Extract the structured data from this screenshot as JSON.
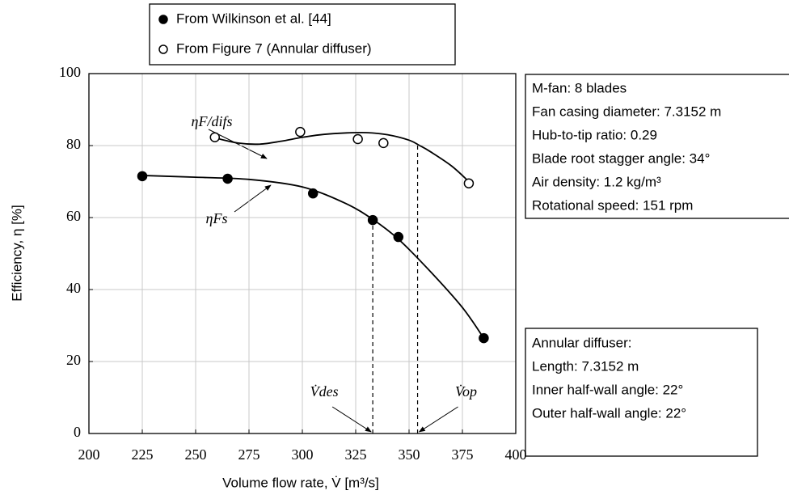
{
  "chart_data": {
    "type": "scatter",
    "x_label": "Volume flow rate, V̇ [m³/s]",
    "y_label": "Efficiency, η [%]",
    "xlim": [
      200,
      400
    ],
    "ylim": [
      0,
      100
    ],
    "xticks": [
      200,
      225,
      250,
      275,
      300,
      325,
      350,
      375,
      400
    ],
    "yticks": [
      0,
      20,
      40,
      60,
      80,
      100
    ],
    "grid": true,
    "series": [
      {
        "name": "From Wilkinson et al. [44]",
        "marker": "filled",
        "color": "#000000",
        "x": [
          225,
          265,
          305,
          333,
          345,
          385
        ],
        "values": [
          71.5,
          70.8,
          66.7,
          59.3,
          54.6,
          26.5
        ]
      },
      {
        "name": "From Figure 7 (Annular diffuser)",
        "marker": "open",
        "color": "#000000",
        "x": [
          259,
          299,
          326,
          338,
          378
        ],
        "values": [
          82.3,
          83.8,
          81.8,
          80.7,
          69.5
        ]
      },
      {
        "name": "ηF/difs",
        "marker": "line",
        "color": "#000000",
        "x": [
          260,
          270,
          280,
          290,
          300,
          310,
          320,
          330,
          340,
          350,
          355,
          360,
          370,
          378
        ],
        "values": [
          82,
          80.7,
          80.4,
          81.2,
          82.3,
          83.1,
          83.5,
          83.6,
          83.0,
          81.5,
          80,
          78.3,
          74.3,
          70
        ]
      },
      {
        "name": "ηFs",
        "marker": "line",
        "color": "#000000",
        "x": [
          225,
          250,
          275,
          300,
          320,
          333,
          345,
          360,
          375,
          385
        ],
        "values": [
          71.7,
          71.2,
          70.6,
          68.5,
          64,
          59.5,
          54,
          45,
          35,
          26.5
        ]
      }
    ],
    "reference_lines": [
      {
        "label": "V̇des",
        "x": 333,
        "y": 59.5
      },
      {
        "label": "V̇op",
        "x": 354,
        "y": 80
      }
    ],
    "info_boxes": [
      {
        "lines": [
          "M-fan: 8 blades",
          "Fan casing diameter: 7.3152 m",
          "Hub-to-tip ratio: 0.29",
          "Blade root stagger angle: 34°",
          "Air density: 1.2 kg/m³",
          "Rotational speed: 151 rpm"
        ]
      },
      {
        "lines": [
          "Annular diffuser:",
          "Length: 7.3152 m",
          "Inner half-wall angle: 22°",
          "Outer half-wall angle: 22°"
        ]
      }
    ]
  }
}
